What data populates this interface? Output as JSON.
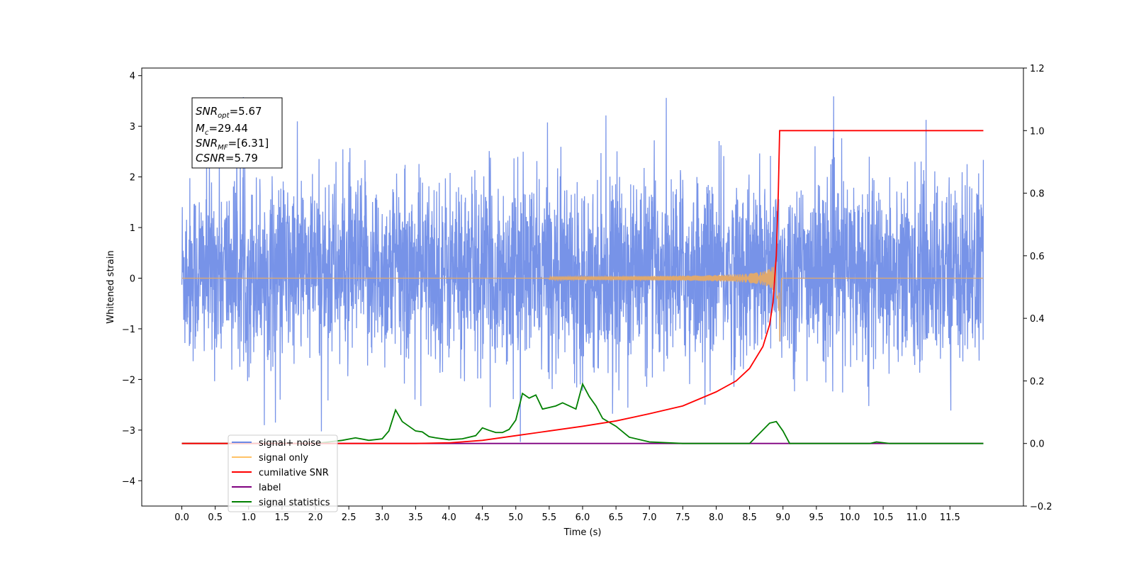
{
  "chart_data": {
    "type": "line",
    "title": "",
    "xlabel": "Time (s)",
    "ylabel": "Whitened strain",
    "xlim": [
      -0.6,
      12.6
    ],
    "ylim_left": [
      -4.5,
      4.15
    ],
    "ylim_right": [
      -0.2,
      1.2
    ],
    "x_ticks": [
      0.0,
      0.5,
      1.0,
      1.5,
      2.0,
      2.5,
      3.0,
      3.5,
      4.0,
      4.5,
      5.0,
      5.5,
      6.0,
      6.5,
      7.0,
      7.5,
      8.0,
      8.5,
      9.0,
      9.5,
      10.0,
      10.5,
      11.0,
      11.5
    ],
    "x_tick_labels": [
      "0.0",
      "0.5",
      "1.0",
      "1.5",
      "2.0",
      "2.5",
      "3.0",
      "3.5",
      "4.0",
      "4.5",
      "5.0",
      "5.5",
      "6.0",
      "6.5",
      "7.0",
      "7.5",
      "8.0",
      "8.5",
      "9.0",
      "9.5",
      "10.0",
      "10.5",
      "11.0",
      "11.5"
    ],
    "y_left_ticks": [
      -4,
      -3,
      -2,
      -1,
      0,
      1,
      2,
      3,
      4
    ],
    "y_left_tick_labels": [
      "−4",
      "−3",
      "−2",
      "−1",
      "0",
      "1",
      "2",
      "3",
      "4"
    ],
    "y_right_ticks": [
      -0.2,
      0.0,
      0.2,
      0.4,
      0.6,
      0.8,
      1.0,
      1.2
    ],
    "y_right_tick_labels": [
      "−0.2",
      "0.0",
      "0.2",
      "0.4",
      "0.6",
      "0.8",
      "1.0",
      "1.2"
    ],
    "grid": false,
    "legend_position": "lower-left",
    "legend": [
      {
        "label": "signal+ noise",
        "color": "#6b8ae6"
      },
      {
        "label": "signal only",
        "color": "#ffc266"
      },
      {
        "label": "cumilative SNR",
        "color": "#ff0000"
      },
      {
        "label": "label",
        "color": "#800080"
      },
      {
        "label": "signal statistics",
        "color": "#008000"
      }
    ],
    "annotation": {
      "snr_opt": "=5.67",
      "mc": "=29.44",
      "snr_mf": "=[6.31]",
      "csnr": "=5.79"
    },
    "series": [
      {
        "name": "signal+ noise",
        "axis": "left",
        "color": "#6b8ae6",
        "x_range": [
          0.0,
          12.0
        ],
        "envelope_typical": [
          -2.2,
          2.4
        ],
        "extreme_range": [
          -4.1,
          3.75
        ]
      },
      {
        "name": "signal only",
        "axis": "left",
        "color": "#e0a96d",
        "chirp_start": 5.5,
        "merger_time": 8.95,
        "peak_amplitude": 0.95,
        "min_amplitude": -1.25
      },
      {
        "name": "cumilative SNR",
        "axis": "right",
        "x": [
          0.0,
          3.5,
          4.0,
          4.5,
          5.0,
          5.5,
          6.0,
          6.5,
          7.0,
          7.5,
          8.0,
          8.3,
          8.5,
          8.7,
          8.8,
          8.85,
          8.9,
          8.93,
          8.95,
          12.0
        ],
        "y": [
          0.0,
          0.0,
          0.002,
          0.01,
          0.025,
          0.04,
          0.055,
          0.072,
          0.095,
          0.12,
          0.165,
          0.2,
          0.24,
          0.31,
          0.38,
          0.45,
          0.6,
          0.8,
          1.0,
          1.0
        ]
      },
      {
        "name": "label",
        "axis": "right",
        "x": [
          0.0,
          12.0
        ],
        "y": [
          0.0,
          0.0
        ]
      },
      {
        "name": "signal statistics",
        "axis": "right",
        "x": [
          0.0,
          2.0,
          2.2,
          2.4,
          2.6,
          2.8,
          3.0,
          3.1,
          3.2,
          3.3,
          3.5,
          3.6,
          3.7,
          3.8,
          4.0,
          4.2,
          4.4,
          4.5,
          4.6,
          4.7,
          4.8,
          4.9,
          5.0,
          5.1,
          5.2,
          5.3,
          5.4,
          5.5,
          5.6,
          5.7,
          5.8,
          5.9,
          6.0,
          6.1,
          6.2,
          6.3,
          6.5,
          6.7,
          7.0,
          7.5,
          8.5,
          8.8,
          8.9,
          9.0,
          9.1,
          9.5,
          10.0,
          10.3,
          10.4,
          10.6,
          12.0
        ],
        "y": [
          0.0,
          0.0,
          0.005,
          0.01,
          0.018,
          0.01,
          0.015,
          0.04,
          0.107,
          0.07,
          0.04,
          0.037,
          0.022,
          0.018,
          0.012,
          0.015,
          0.025,
          0.05,
          0.042,
          0.035,
          0.035,
          0.045,
          0.075,
          0.16,
          0.145,
          0.155,
          0.11,
          0.115,
          0.12,
          0.13,
          0.12,
          0.11,
          0.19,
          0.15,
          0.12,
          0.08,
          0.055,
          0.02,
          0.005,
          0.0,
          0.0,
          0.065,
          0.07,
          0.04,
          0.0,
          0.0,
          0.0,
          0.0,
          0.005,
          0.0,
          0.0
        ]
      }
    ]
  }
}
